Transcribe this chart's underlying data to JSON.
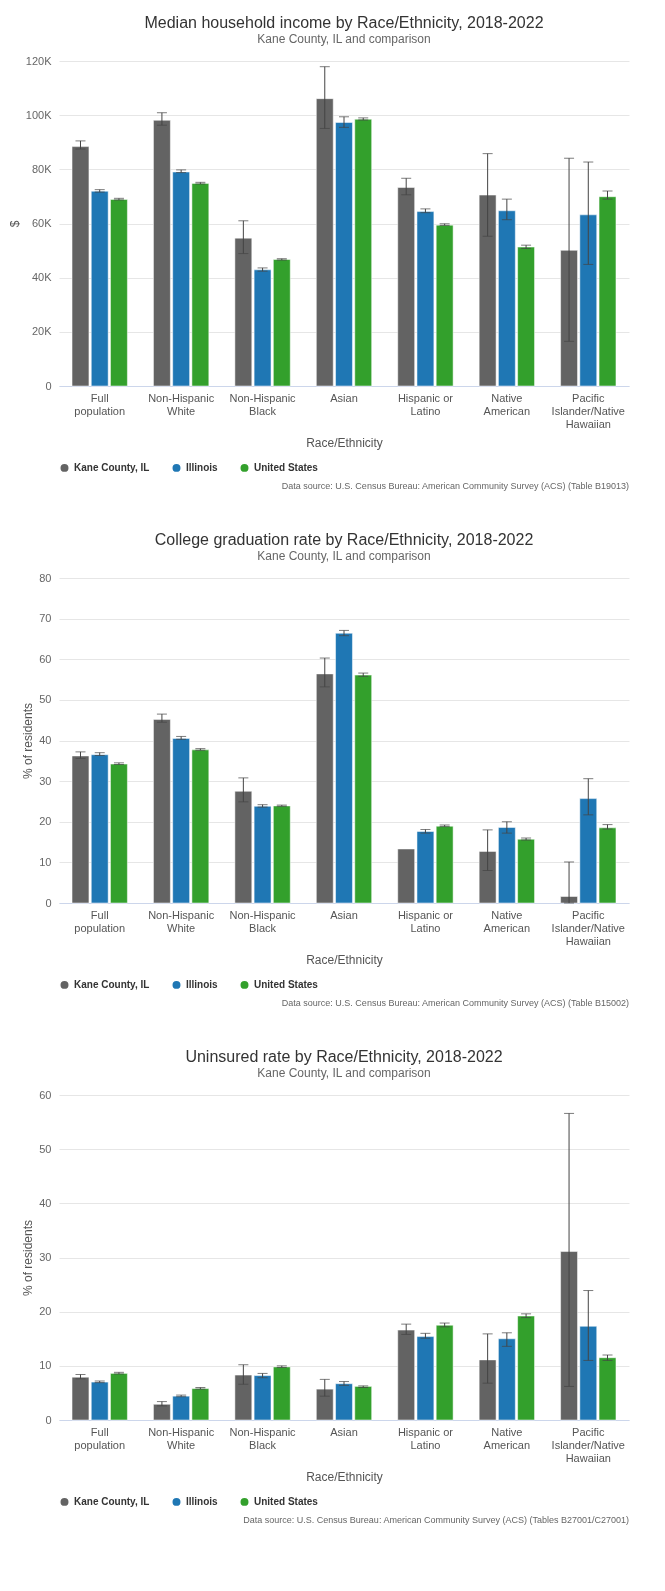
{
  "chart_data": [
    {
      "type": "bar",
      "title": "Median household income by Race/Ethnicity, 2018-2022",
      "subtitle": "Kane County, IL and comparison",
      "xlabel": "Race/Ethnicity",
      "ylabel": "$",
      "categories": [
        "Full population",
        "Non-Hispanic White",
        "Non-Hispanic Black",
        "Asian",
        "Hispanic or Latino",
        "Native American",
        "Pacific Islander/Native Hawaiian"
      ],
      "ylim": [
        0,
        120000
      ],
      "yticks": [
        0,
        {
          "value": 20000,
          "label": "20K"
        },
        {
          "value": 40000,
          "label": "40K"
        },
        {
          "value": 60000,
          "label": "60K"
        },
        {
          "value": 80000,
          "label": "80K"
        },
        {
          "value": 100000,
          "label": "100K"
        },
        {
          "value": 120000,
          "label": "120K"
        }
      ],
      "grid": "y",
      "legend": "bottom",
      "annotations": [
        "Data source: U.S. Census Bureau: American Community Survey (ACS) (Table B19013)"
      ],
      "series": [
        {
          "name": "Kane County, IL",
          "color": "#636363",
          "values": [
            88400,
            98100,
            54600,
            106100,
            73300,
            70500,
            50100
          ],
          "errors": [
            [
              87500,
              90500
            ],
            [
              96300,
              100900
            ],
            [
              48900,
              61000
            ],
            [
              95100,
              117900
            ],
            [
              70600,
              76700
            ],
            [
              55300,
              85800
            ],
            [
              16500,
              84100
            ]
          ]
        },
        {
          "name": "Illinois",
          "color": "#1f77b4",
          "values": [
            71900,
            79000,
            42900,
            97300,
            64400,
            64700,
            63200
          ],
          "errors": [
            [
              71600,
              72500
            ],
            [
              78800,
              79800
            ],
            [
              42400,
              43600
            ],
            [
              95500,
              99400
            ],
            [
              64000,
              65400
            ],
            [
              61400,
              69000
            ],
            [
              44900,
              82700
            ]
          ]
        },
        {
          "name": "United States",
          "color": "#33a02c",
          "values": [
            68900,
            74800,
            46700,
            98500,
            59400,
            51300,
            69900
          ],
          "errors": [
            [
              68700,
              69300
            ],
            [
              74600,
              75200
            ],
            [
              46500,
              47000
            ],
            [
              98200,
              99000
            ],
            [
              59300,
              59900
            ],
            [
              50800,
              52000
            ],
            [
              69000,
              72000
            ]
          ]
        }
      ]
    },
    {
      "type": "bar",
      "title": "College graduation rate by Race/Ethnicity, 2018-2022",
      "subtitle": "Kane County, IL and comparison",
      "xlabel": "Race/Ethnicity",
      "ylabel": "% of residents",
      "categories": [
        "Full population",
        "Non-Hispanic White",
        "Non-Hispanic Black",
        "Asian",
        "Hispanic or Latino",
        "Native American",
        "Pacific Islander/Native Hawaiian"
      ],
      "ylim": [
        0,
        80
      ],
      "yticks": [
        0,
        10,
        20,
        30,
        40,
        50,
        60,
        70,
        80
      ],
      "grid": "y",
      "legend": "bottom",
      "annotations": [
        "Data source: U.S. Census Bureau: American Community Survey (ACS) (Table B15002)"
      ],
      "series": [
        {
          "name": "Kane County, IL",
          "color": "#636363",
          "values": [
            36.2,
            45.2,
            27.5,
            56.4,
            13.3,
            12.7,
            1.6
          ],
          "errors": [
            [
              35.6,
              37.2
            ],
            [
              44.5,
              46.5
            ],
            [
              24.9,
              30.8
            ],
            [
              53.2,
              60.3
            ],
            null,
            [
              8.0,
              18.0
            ],
            [
              0,
              10.1
            ]
          ]
        },
        {
          "name": "Illinois",
          "color": "#1f77b4",
          "values": [
            36.5,
            40.5,
            23.8,
            66.4,
            17.6,
            18.6,
            25.7
          ],
          "errors": [
            [
              36.3,
              37.0
            ],
            [
              40.3,
              41.0
            ],
            [
              23.6,
              24.2
            ],
            [
              65.8,
              67.1
            ],
            [
              17.2,
              18.1
            ],
            [
              17.2,
              20.0
            ],
            [
              21.7,
              30.6
            ]
          ]
        },
        {
          "name": "United States",
          "color": "#33a02c",
          "values": [
            34.2,
            37.7,
            23.9,
            56.1,
            18.9,
            15.7,
            18.5
          ],
          "errors": [
            [
              34.1,
              34.5
            ],
            [
              37.6,
              38.0
            ],
            [
              23.8,
              24.1
            ],
            [
              55.8,
              56.6
            ],
            [
              18.8,
              19.2
            ],
            [
              15.5,
              16.0
            ],
            [
              18.2,
              19.3
            ]
          ]
        }
      ]
    },
    {
      "type": "bar",
      "title": "Uninsured rate by Race/Ethnicity, 2018-2022",
      "subtitle": "Kane County, IL and comparison",
      "xlabel": "Race/Ethnicity",
      "ylabel": "% of residents",
      "categories": [
        "Full population",
        "Non-Hispanic White",
        "Non-Hispanic Black",
        "Asian",
        "Hispanic or Latino",
        "Native American",
        "Pacific Islander/Native Hawaiian"
      ],
      "ylim": [
        0,
        60
      ],
      "yticks": [
        0,
        10,
        20,
        30,
        40,
        50,
        60
      ],
      "grid": "y",
      "legend": "bottom",
      "annotations": [
        "Data source: U.S. Census Bureau: American Community Survey (ACS) (Tables B27001/C27001)"
      ],
      "series": [
        {
          "name": "Kane County, IL",
          "color": "#636363",
          "values": [
            7.9,
            2.9,
            8.3,
            5.7,
            16.6,
            11.1,
            31.1
          ],
          "errors": [
            [
              7.6,
              8.4
            ],
            [
              2.6,
              3.4
            ],
            [
              6.6,
              10.2
            ],
            [
              4.4,
              7.5
            ],
            [
              15.8,
              17.7
            ],
            [
              6.8,
              15.9
            ],
            [
              6.2,
              56.6
            ]
          ]
        },
        {
          "name": "Illinois",
          "color": "#1f77b4",
          "values": [
            7.0,
            4.4,
            8.2,
            6.7,
            15.4,
            15.0,
            17.3
          ],
          "errors": [
            [
              6.9,
              7.2
            ],
            [
              4.3,
              4.6
            ],
            [
              7.8,
              8.6
            ],
            [
              6.4,
              7.1
            ],
            [
              15.1,
              16.0
            ],
            [
              13.6,
              16.1
            ],
            [
              11.0,
              23.9
            ]
          ]
        },
        {
          "name": "United States",
          "color": "#33a02c",
          "values": [
            8.6,
            5.8,
            9.8,
            6.2,
            17.5,
            19.2,
            11.5
          ],
          "errors": [
            [
              8.5,
              8.8
            ],
            [
              5.7,
              6.0
            ],
            [
              9.7,
              10.0
            ],
            [
              6.0,
              6.3
            ],
            [
              17.2,
              17.9
            ],
            [
              18.9,
              19.6
            ],
            [
              11.0,
              12.0
            ]
          ]
        }
      ]
    }
  ]
}
